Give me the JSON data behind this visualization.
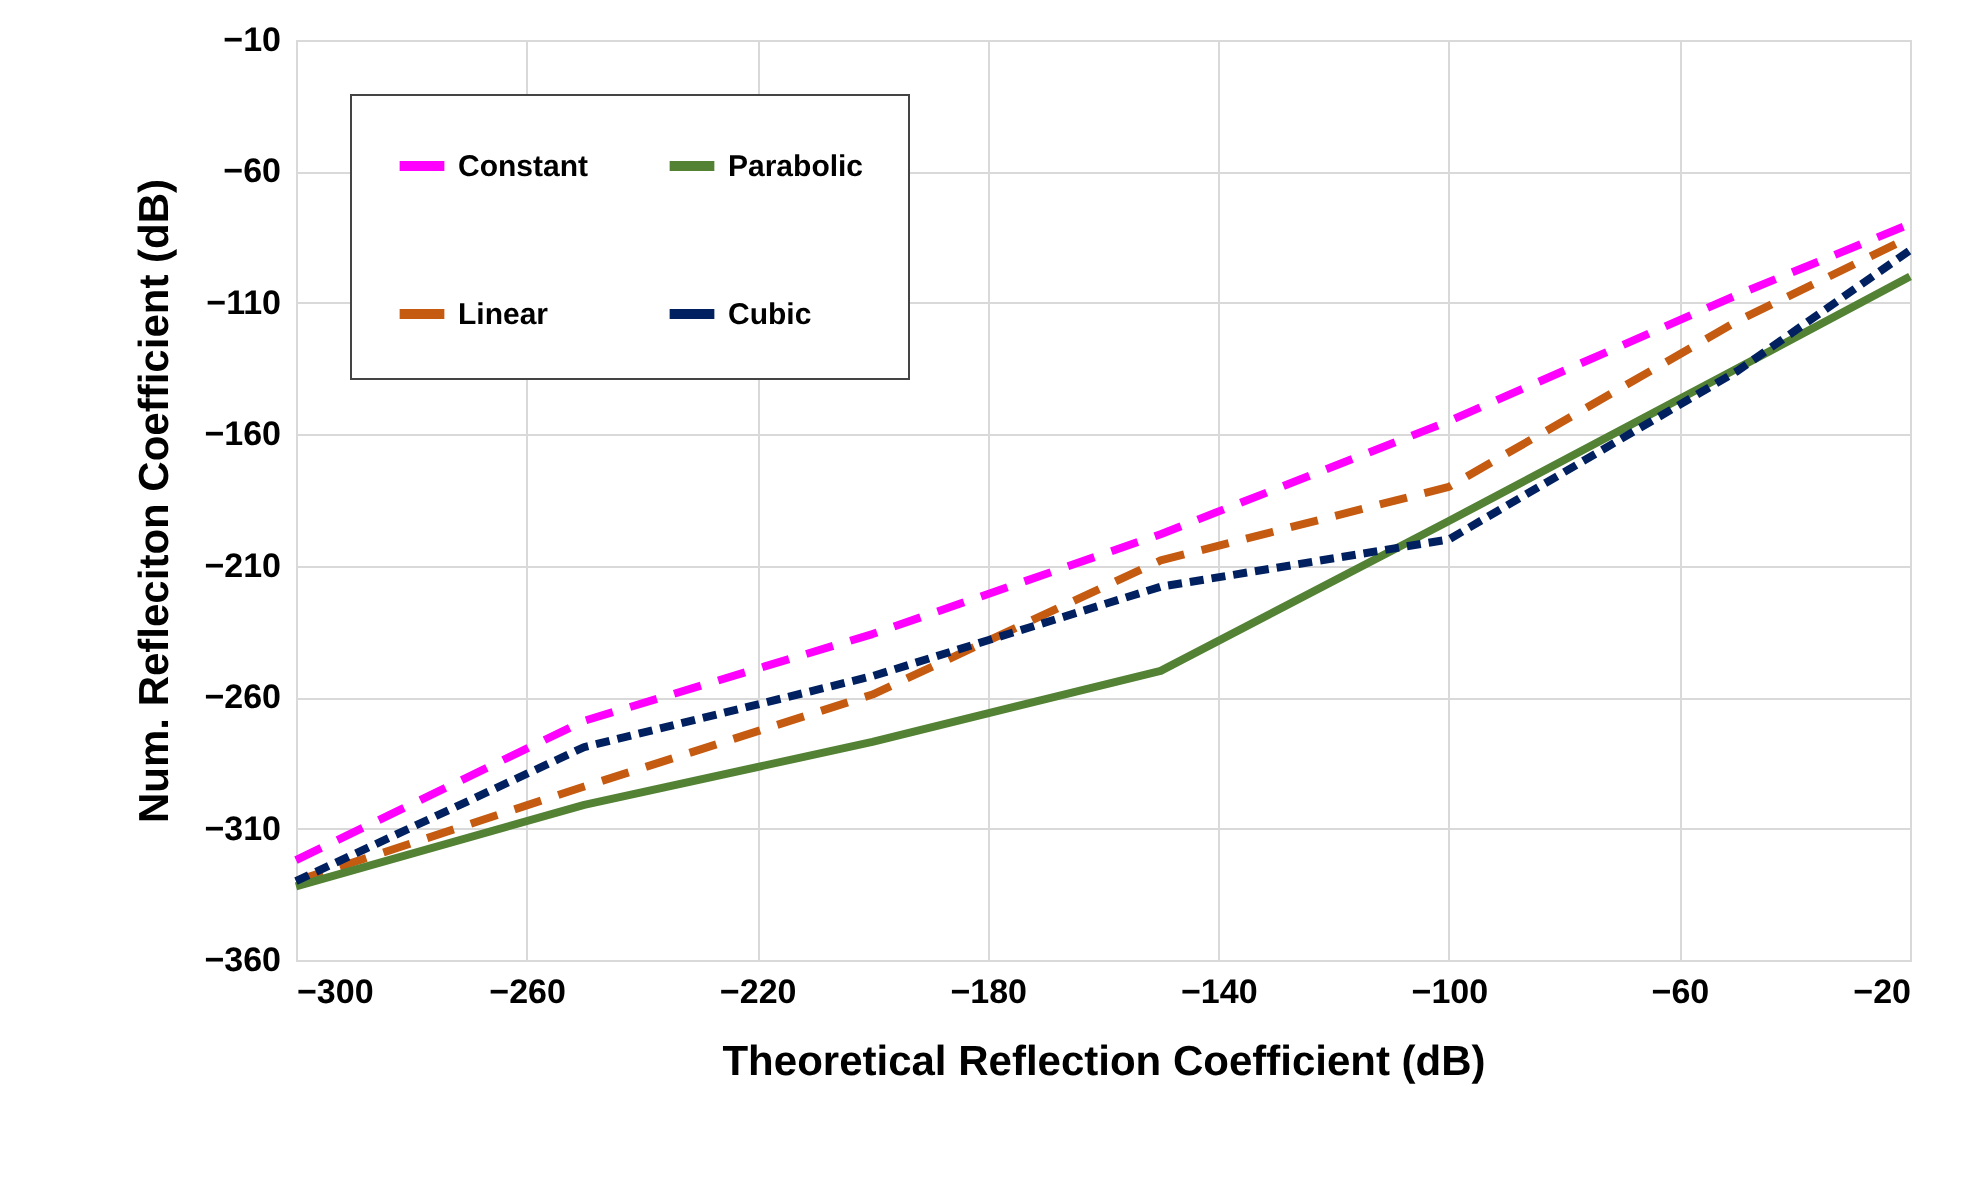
{
  "chart_data": {
    "type": "line",
    "xlabel": "Theoretical Reflection Coefficient (dB)",
    "ylabel": "Num.  Refleciton Coefficient (dB)",
    "x": [
      -300,
      -250,
      -200,
      -150,
      -100,
      -50,
      -20
    ],
    "xlim": [
      -300,
      -20
    ],
    "xticks": [
      -300,
      -260,
      -220,
      -180,
      -140,
      -100,
      -60,
      -20
    ],
    "ylim": [
      -360,
      -10
    ],
    "yticks": [
      -360,
      -310,
      -260,
      -210,
      -160,
      -110,
      -60,
      -10
    ],
    "grid": true,
    "legend": "top left",
    "marker": "none",
    "series": [
      {
        "name": "Constant",
        "color": "#ff00ff",
        "line_style": "dashed",
        "values": [
          -322,
          -269,
          -236,
          -198,
          -155,
          -107,
          -80
        ]
      },
      {
        "name": "Linear",
        "color": "#c55a11",
        "line_style": "dashed",
        "values": [
          -330,
          -294,
          -259,
          -208,
          -180,
          -117,
          -85
        ]
      },
      {
        "name": "Parabolic",
        "color": "#548235",
        "line_style": "solid",
        "values": [
          -332,
          -301,
          -277,
          -250,
          -193,
          -135,
          -100
        ]
      },
      {
        "name": "Cubic",
        "color": "#002060",
        "line_style": "dotted",
        "values": [
          -330,
          -279,
          -252,
          -218,
          -200,
          -136,
          -90
        ]
      }
    ]
  }
}
